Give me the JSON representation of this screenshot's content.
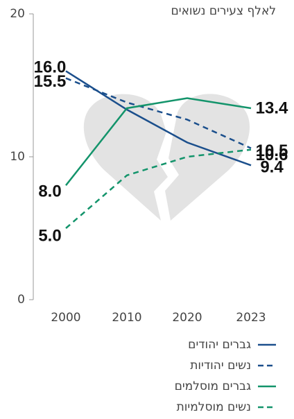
{
  "chart_data": {
    "type": "line",
    "y_label": "לאלף צעירים נשואים",
    "categories": [
      "2000",
      "2010",
      "2020",
      "2023"
    ],
    "ylim": [
      0,
      20
    ],
    "yticks": [
      0,
      10,
      20
    ],
    "series": [
      {
        "name": "גברים יהודים",
        "color": "#1b4f8c",
        "dash": false,
        "values": [
          16.0,
          13.3,
          11.0,
          9.4
        ],
        "value_labels": [
          "16.0",
          null,
          null,
          "9.4"
        ]
      },
      {
        "name": "נשים יהודיות",
        "color": "#1b4f8c",
        "dash": true,
        "values": [
          15.5,
          13.8,
          12.6,
          10.6
        ],
        "value_labels": [
          "15.5",
          null,
          null,
          "10.6"
        ]
      },
      {
        "name": "גברים מוסלמים",
        "color": "#13946b",
        "dash": false,
        "values": [
          8.0,
          13.4,
          14.1,
          13.4
        ],
        "value_labels": [
          "8.0",
          null,
          null,
          "13.4"
        ]
      },
      {
        "name": "נשים מוסלמיות",
        "color": "#13946b",
        "dash": true,
        "values": [
          5.0,
          8.7,
          10.0,
          10.5
        ],
        "value_labels": [
          "5.0",
          null,
          null,
          "10.5"
        ]
      }
    ]
  }
}
